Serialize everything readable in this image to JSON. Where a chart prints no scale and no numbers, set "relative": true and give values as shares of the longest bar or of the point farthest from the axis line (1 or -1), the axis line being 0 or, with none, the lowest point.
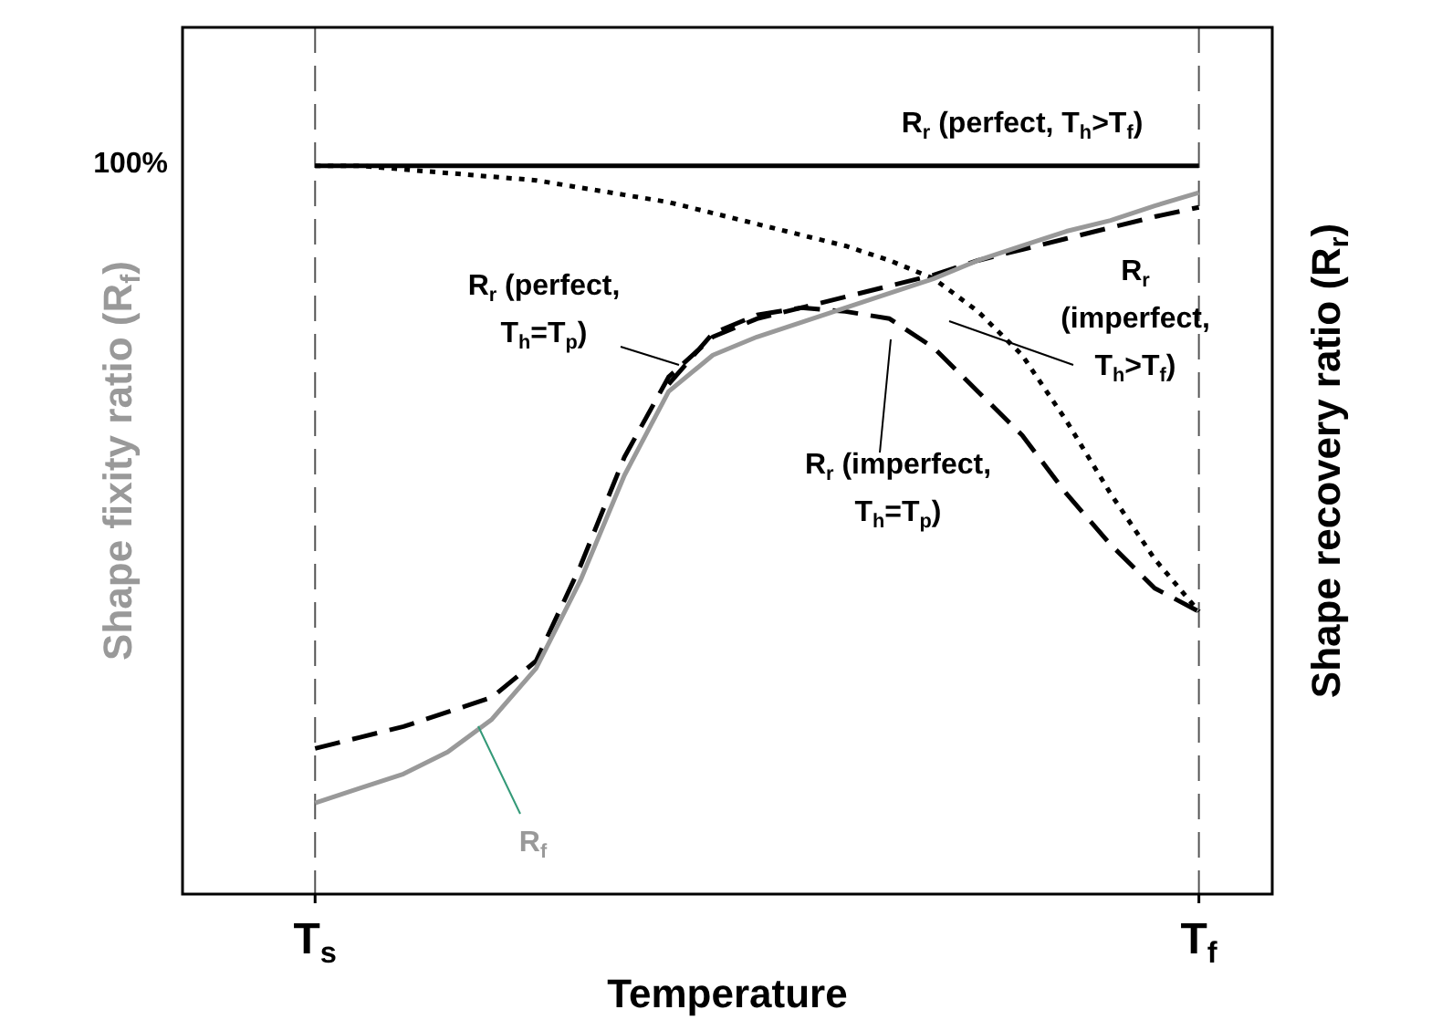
{
  "chart_data": {
    "type": "line",
    "relative": true,
    "xlabel": "Temperature",
    "ylabel": "Shape fixity ratio (R$_{f}$)",
    "y2label": "Shape recovery ratio (R$_{r}$)",
    "categories": [
      "T$_{s}$",
      null,
      null,
      null,
      null,
      null,
      null,
      null,
      null,
      null,
      null,
      null,
      null,
      null,
      null,
      null,
      null,
      null,
      null,
      null,
      "T$_{f}$"
    ],
    "legend": false,
    "marker": "none",
    "ref_lines": [
      {
        "axis": "x",
        "value": "T$_{s}$",
        "color": "#555555",
        "line_style": "dashed"
      },
      {
        "axis": "x",
        "value": "T$_{f}$",
        "color": "#555555",
        "line_style": "dashed"
      }
    ],
    "annotations": [
      "100%"
    ],
    "series": [
      {
        "name": "R$_{f}$",
        "color": "#999999",
        "line_style": "solid",
        "values": [
          0.125,
          0.145,
          0.165,
          0.195,
          0.24,
          0.31,
          0.43,
          0.575,
          0.69,
          0.74,
          0.765,
          0.785,
          0.805,
          0.825,
          0.845,
          0.87,
          0.89,
          0.91,
          0.925,
          0.945,
          0.963
        ]
      },
      {
        "name": "R$_{r}$ (perfect, T$_{h}$=T$_{p}$)",
        "color": "#000000",
        "line_style": "dashed",
        "values": [
          0.2,
          0.215,
          0.23,
          0.25,
          0.27,
          0.32,
          0.45,
          0.6,
          0.71,
          0.765,
          0.79,
          0.805,
          0.82,
          0.835,
          0.85,
          0.87,
          0.885,
          0.9,
          0.915,
          0.93,
          0.943
        ]
      },
      {
        "name": "R$_{r}$ (perfect, T$_{h}$>T$_{f}$)",
        "color": "#000000",
        "line_style": "solid",
        "values": [
          1,
          1,
          1,
          1,
          1,
          1,
          1,
          1,
          1,
          1,
          1,
          1,
          1,
          1,
          1,
          1,
          1,
          1,
          1,
          1,
          1
        ]
      },
      {
        "name": "R$_{r}$ (imperfect, T$_{h}$>T$_{f}$)",
        "color": "#000000",
        "line_style": "dotted",
        "values": [
          1,
          1,
          0.995,
          0.99,
          0.985,
          0.98,
          0.97,
          0.96,
          0.95,
          0.935,
          0.92,
          0.905,
          0.89,
          0.87,
          0.845,
          0.8,
          0.74,
          0.65,
          0.55,
          0.46,
          0.388
        ]
      },
      {
        "name": "R$_{r}$ (imperfect, T$_{h}$=T$_{p}$)",
        "color": "#000000",
        "line_style": "dashed",
        "values": [
          null,
          null,
          null,
          null,
          null,
          null,
          null,
          null,
          0.7,
          0.77,
          0.795,
          0.805,
          0.8,
          0.79,
          0.75,
          0.69,
          0.63,
          0.55,
          0.48,
          0.42,
          0.388
        ]
      }
    ]
  }
}
